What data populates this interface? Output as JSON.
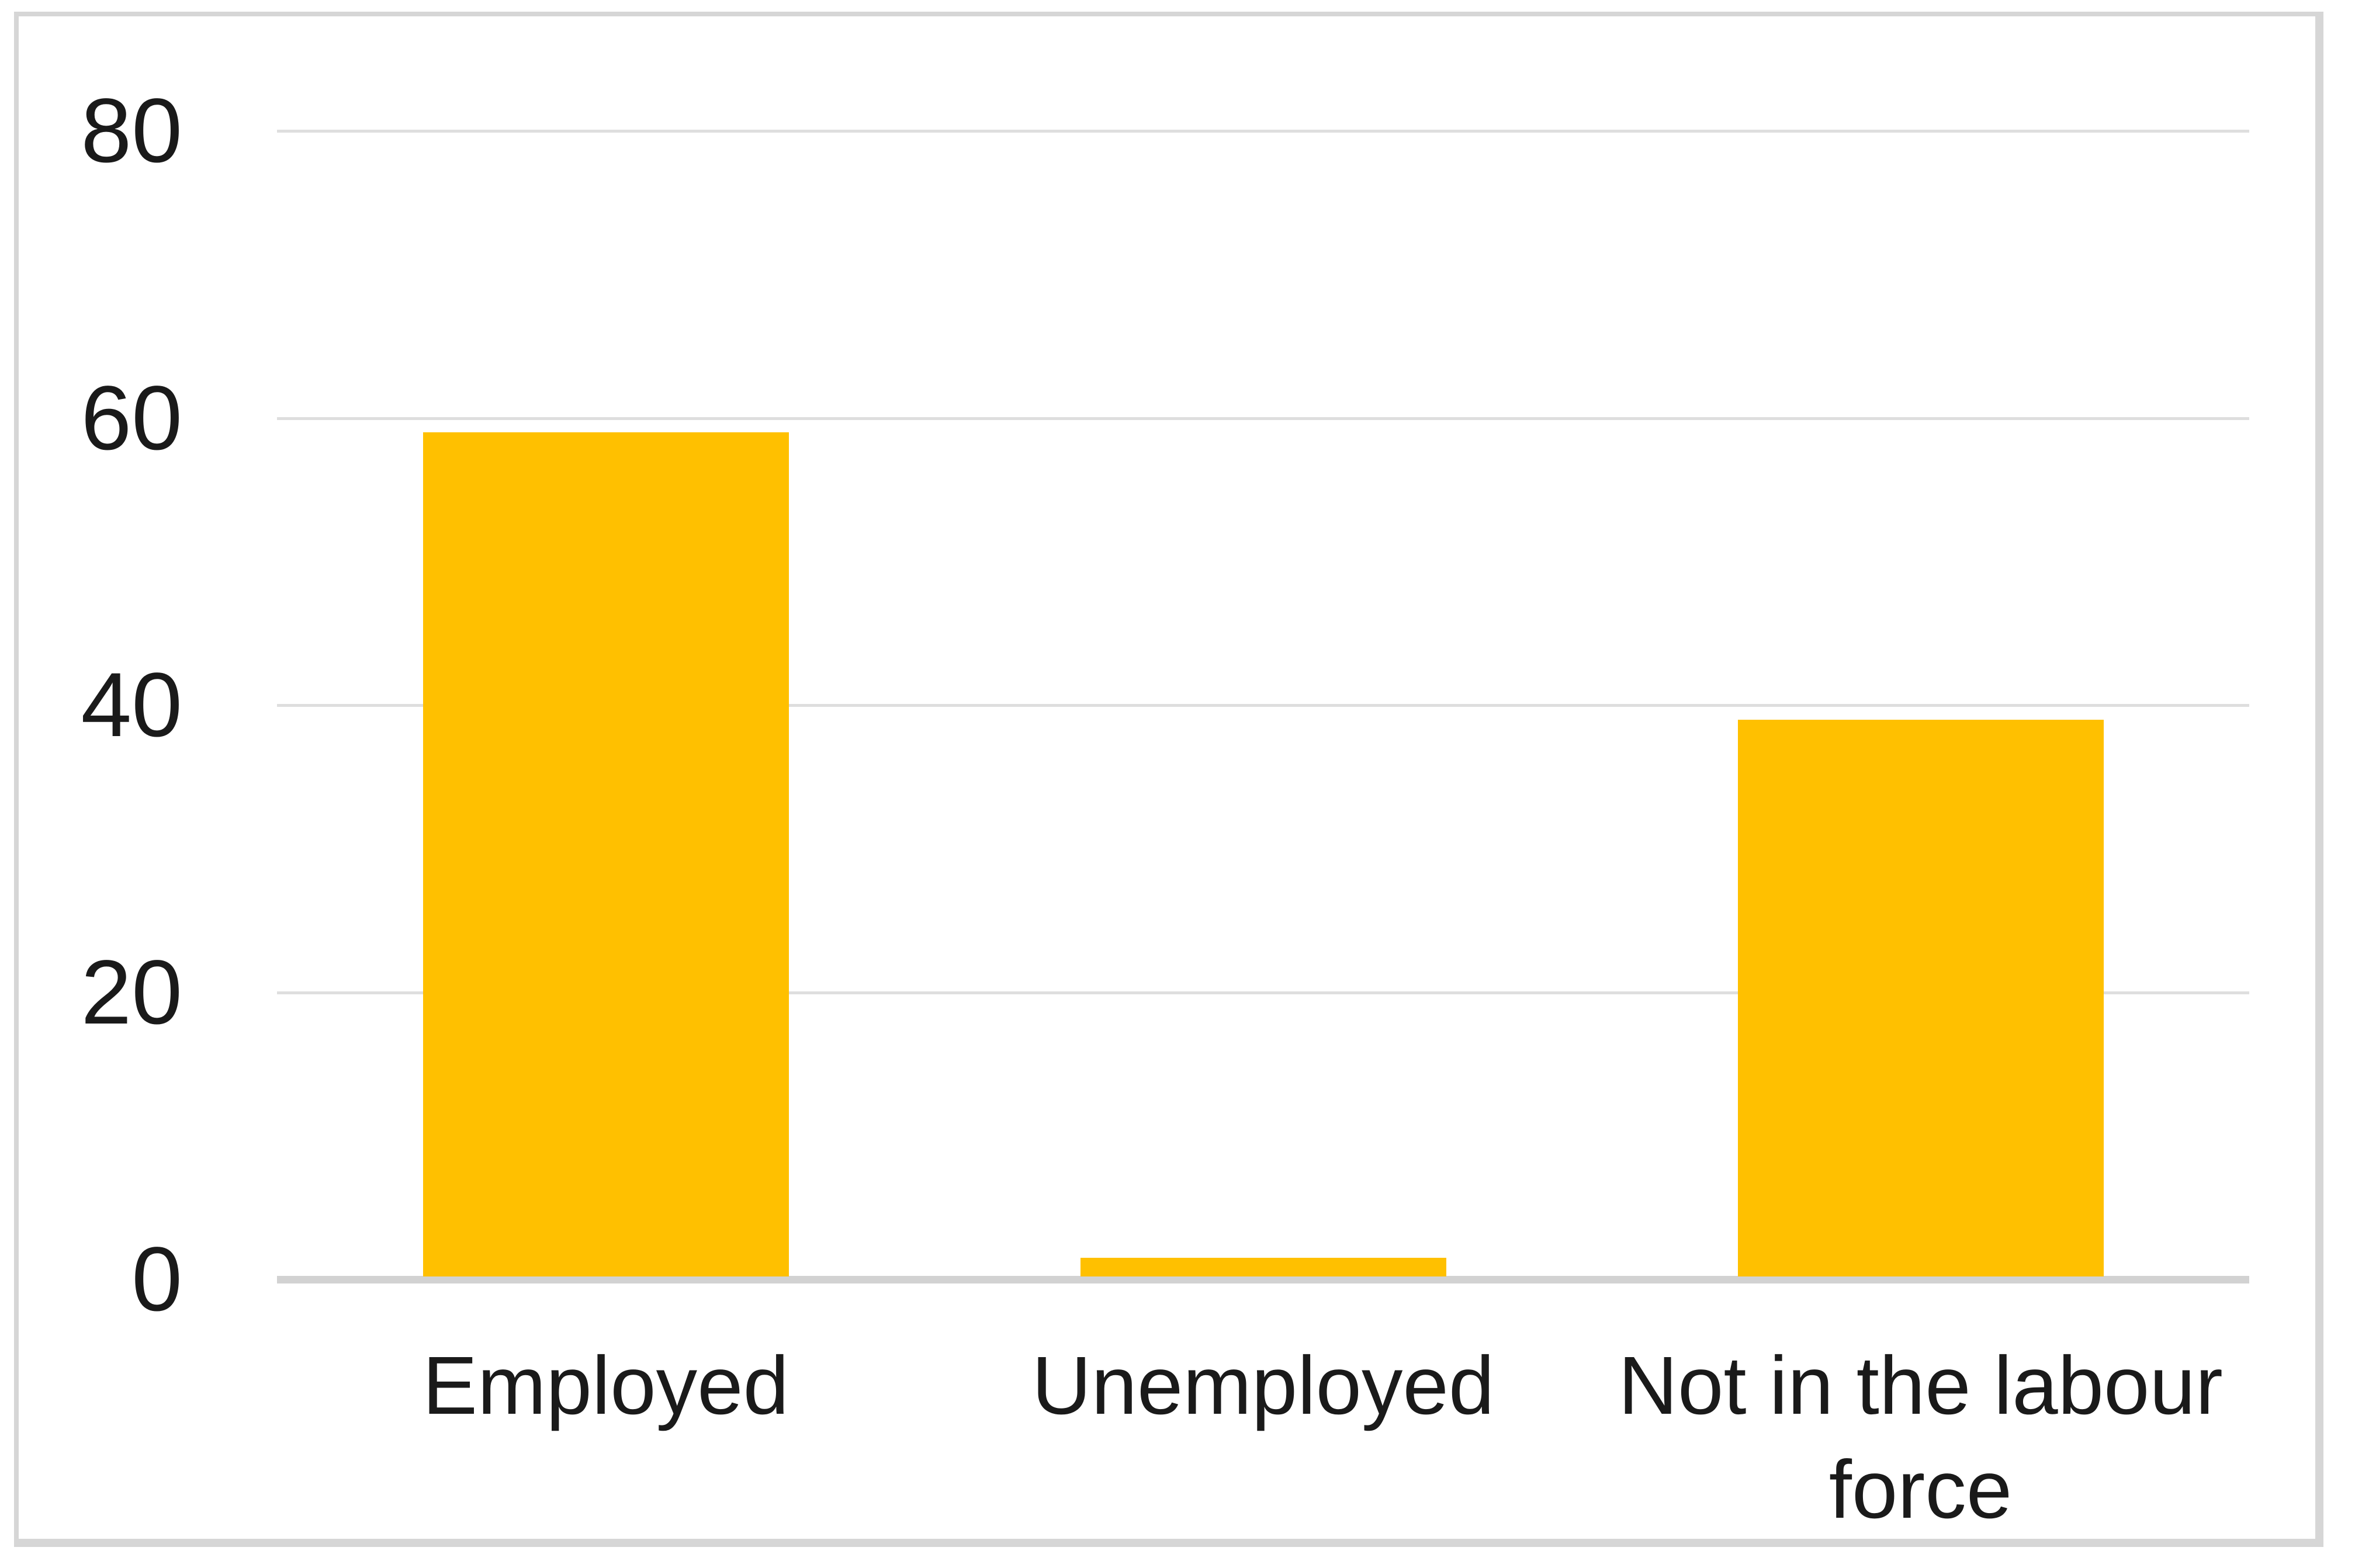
{
  "chart_data": {
    "type": "bar",
    "categories": [
      "Employed",
      "Unemployed",
      "Not in the labour force"
    ],
    "values": [
      59,
      1.5,
      39
    ],
    "yticks": [
      0,
      20,
      40,
      60,
      80
    ],
    "ylim": [
      0,
      80
    ],
    "grid": true,
    "legend": false,
    "bar_color": "#FFC000",
    "gridline_color": "#DEDEDE",
    "axis_line_color": "#D2D2D2",
    "frame_border_color": "#D6D6D6",
    "text_color": "#1A1A1A",
    "background_color": "#FFFFFF"
  }
}
